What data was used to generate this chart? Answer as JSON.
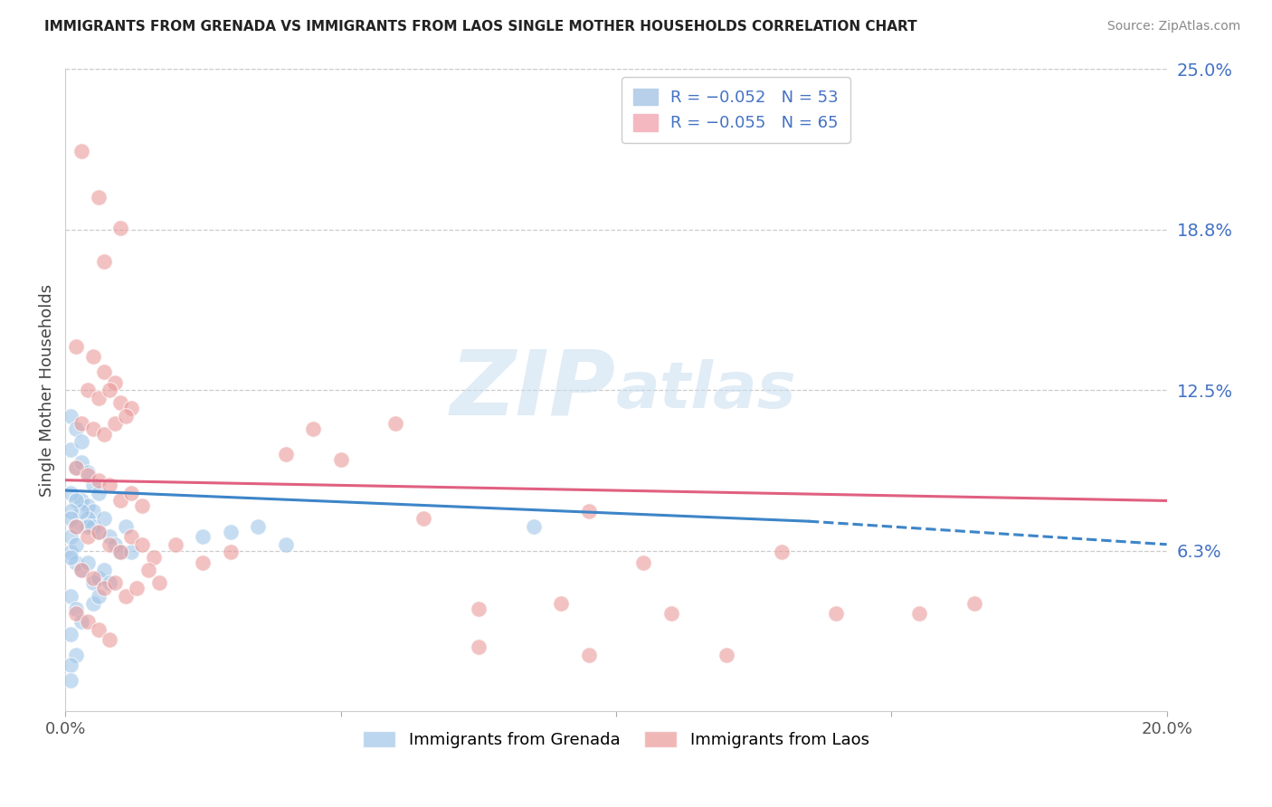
{
  "title": "IMMIGRANTS FROM GRENADA VS IMMIGRANTS FROM LAOS SINGLE MOTHER HOUSEHOLDS CORRELATION CHART",
  "source": "Source: ZipAtlas.com",
  "ylabel": "Single Mother Households",
  "xlim": [
    0.0,
    0.2
  ],
  "ylim": [
    0.0,
    0.25
  ],
  "yticks": [
    0.0625,
    0.125,
    0.1875,
    0.25
  ],
  "ytick_labels": [
    "6.3%",
    "12.5%",
    "18.8%",
    "25.0%"
  ],
  "xticks": [
    0.0,
    0.05,
    0.1,
    0.15,
    0.2
  ],
  "xtick_labels": [
    "0.0%",
    "",
    "",
    "",
    "20.0%"
  ],
  "grenada_color": "#9fc5e8",
  "laos_color": "#ea9999",
  "trend_grenada_color": "#3d85c8",
  "trend_laos_color": "#e06080",
  "watermark_zip": "ZIP",
  "watermark_atlas": "atlas",
  "background_color": "#ffffff",
  "grenada_scatter": [
    [
      0.001,
      0.102
    ],
    [
      0.002,
      0.095
    ],
    [
      0.003,
      0.097
    ],
    [
      0.004,
      0.093
    ],
    [
      0.005,
      0.088
    ],
    [
      0.006,
      0.085
    ],
    [
      0.003,
      0.082
    ],
    [
      0.004,
      0.08
    ],
    [
      0.005,
      0.078
    ],
    [
      0.001,
      0.115
    ],
    [
      0.002,
      0.11
    ],
    [
      0.003,
      0.105
    ],
    [
      0.004,
      0.075
    ],
    [
      0.005,
      0.072
    ],
    [
      0.006,
      0.07
    ],
    [
      0.007,
      0.075
    ],
    [
      0.008,
      0.068
    ],
    [
      0.009,
      0.065
    ],
    [
      0.01,
      0.062
    ],
    [
      0.011,
      0.072
    ],
    [
      0.012,
      0.062
    ],
    [
      0.001,
      0.062
    ],
    [
      0.002,
      0.058
    ],
    [
      0.003,
      0.055
    ],
    [
      0.004,
      0.058
    ],
    [
      0.005,
      0.05
    ],
    [
      0.006,
      0.052
    ],
    [
      0.007,
      0.055
    ],
    [
      0.008,
      0.05
    ],
    [
      0.001,
      0.045
    ],
    [
      0.002,
      0.04
    ],
    [
      0.003,
      0.035
    ],
    [
      0.001,
      0.03
    ],
    [
      0.002,
      0.022
    ],
    [
      0.001,
      0.018
    ],
    [
      0.001,
      0.012
    ],
    [
      0.003,
      0.078
    ],
    [
      0.004,
      0.072
    ],
    [
      0.005,
      0.042
    ],
    [
      0.006,
      0.045
    ],
    [
      0.001,
      0.085
    ],
    [
      0.002,
      0.082
    ],
    [
      0.001,
      0.078
    ],
    [
      0.001,
      0.075
    ],
    [
      0.002,
      0.072
    ],
    [
      0.001,
      0.068
    ],
    [
      0.002,
      0.065
    ],
    [
      0.001,
      0.06
    ],
    [
      0.025,
      0.068
    ],
    [
      0.03,
      0.07
    ],
    [
      0.035,
      0.072
    ],
    [
      0.04,
      0.065
    ],
    [
      0.085,
      0.072
    ]
  ],
  "laos_scatter": [
    [
      0.003,
      0.218
    ],
    [
      0.006,
      0.2
    ],
    [
      0.01,
      0.188
    ],
    [
      0.007,
      0.175
    ],
    [
      0.002,
      0.142
    ],
    [
      0.005,
      0.138
    ],
    [
      0.007,
      0.132
    ],
    [
      0.009,
      0.128
    ],
    [
      0.004,
      0.125
    ],
    [
      0.006,
      0.122
    ],
    [
      0.008,
      0.125
    ],
    [
      0.01,
      0.12
    ],
    [
      0.012,
      0.118
    ],
    [
      0.003,
      0.112
    ],
    [
      0.005,
      0.11
    ],
    [
      0.007,
      0.108
    ],
    [
      0.009,
      0.112
    ],
    [
      0.011,
      0.115
    ],
    [
      0.002,
      0.095
    ],
    [
      0.004,
      0.092
    ],
    [
      0.006,
      0.09
    ],
    [
      0.008,
      0.088
    ],
    [
      0.01,
      0.082
    ],
    [
      0.012,
      0.085
    ],
    [
      0.014,
      0.08
    ],
    [
      0.002,
      0.072
    ],
    [
      0.004,
      0.068
    ],
    [
      0.006,
      0.07
    ],
    [
      0.008,
      0.065
    ],
    [
      0.01,
      0.062
    ],
    [
      0.012,
      0.068
    ],
    [
      0.014,
      0.065
    ],
    [
      0.016,
      0.06
    ],
    [
      0.003,
      0.055
    ],
    [
      0.005,
      0.052
    ],
    [
      0.007,
      0.048
    ],
    [
      0.009,
      0.05
    ],
    [
      0.011,
      0.045
    ],
    [
      0.013,
      0.048
    ],
    [
      0.015,
      0.055
    ],
    [
      0.017,
      0.05
    ],
    [
      0.002,
      0.038
    ],
    [
      0.004,
      0.035
    ],
    [
      0.006,
      0.032
    ],
    [
      0.008,
      0.028
    ],
    [
      0.02,
      0.065
    ],
    [
      0.025,
      0.058
    ],
    [
      0.03,
      0.062
    ],
    [
      0.04,
      0.1
    ],
    [
      0.045,
      0.11
    ],
    [
      0.05,
      0.098
    ],
    [
      0.06,
      0.112
    ],
    [
      0.065,
      0.075
    ],
    [
      0.075,
      0.04
    ],
    [
      0.09,
      0.042
    ],
    [
      0.095,
      0.078
    ],
    [
      0.105,
      0.058
    ],
    [
      0.11,
      0.038
    ],
    [
      0.12,
      0.022
    ],
    [
      0.13,
      0.062
    ],
    [
      0.14,
      0.038
    ],
    [
      0.155,
      0.038
    ],
    [
      0.165,
      0.042
    ],
    [
      0.075,
      0.025
    ],
    [
      0.095,
      0.022
    ]
  ],
  "grenada_trend_x": [
    0.0,
    0.135
  ],
  "grenada_trend_y": [
    0.086,
    0.074
  ],
  "laos_trend_x": [
    0.0,
    0.2
  ],
  "laos_trend_y": [
    0.09,
    0.082
  ]
}
